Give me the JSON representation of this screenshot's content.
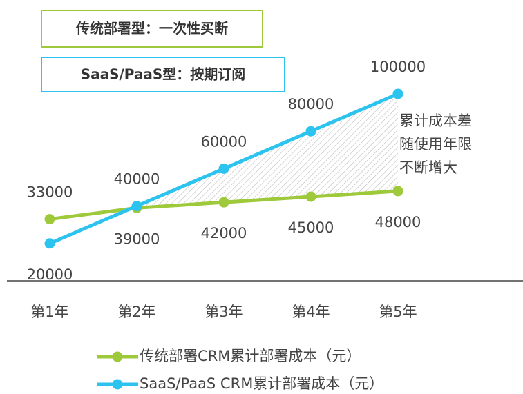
{
  "chart_data": {
    "type": "line",
    "boxes": [
      {
        "text": "传统部署型：一次性买断",
        "color": "#9dc93a"
      },
      {
        "text": "SaaS/PaaS型：按期订阅",
        "color": "#2cc3ef"
      }
    ],
    "annotation": [
      "累计成本差",
      "随使用年限",
      "不断增大"
    ],
    "categories": [
      "第1年",
      "第2年",
      "第3年",
      "第4年",
      "第5年"
    ],
    "series": [
      {
        "name": "传统部署CRM累计部署成本（元）",
        "color": "#9dc93a",
        "values": [
          33000,
          39000,
          42000,
          45000,
          48000
        ]
      },
      {
        "name": "SaaS/PaaS CRM累计部署成本（元）",
        "color": "#2cc3ef",
        "values": [
          20000,
          40000,
          60000,
          80000,
          100000
        ]
      }
    ],
    "ylim": [
      0,
      100000
    ]
  }
}
